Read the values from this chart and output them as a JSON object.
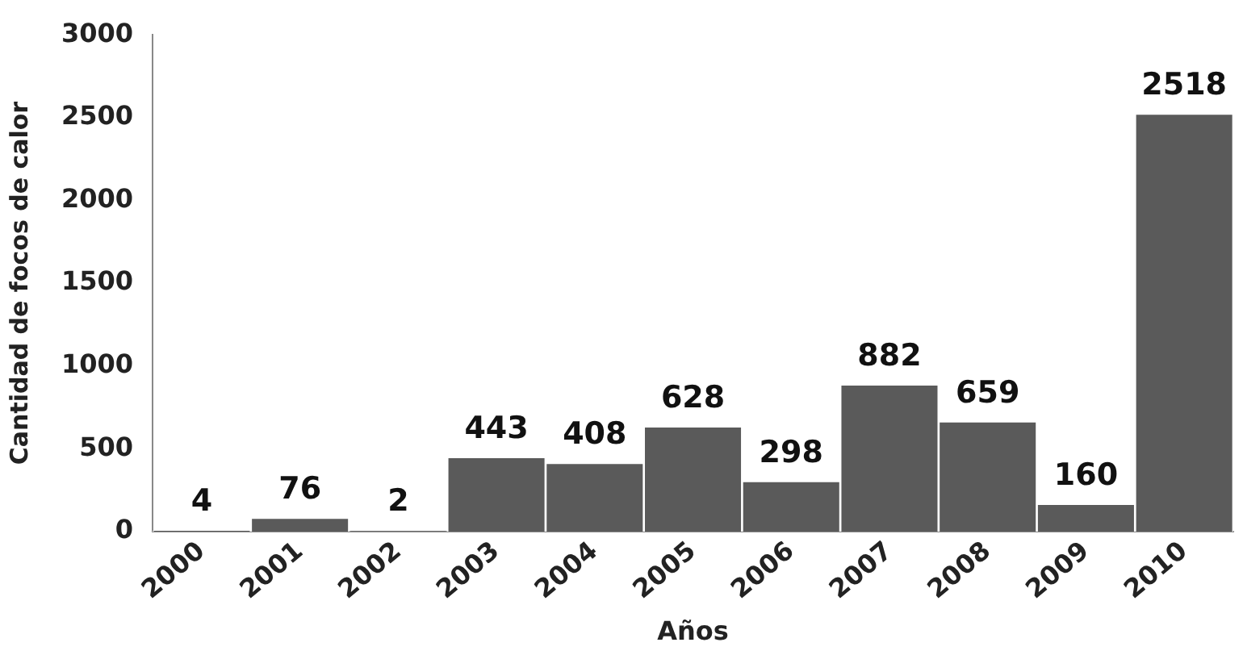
{
  "chart_data": {
    "type": "bar",
    "xlabel": "Años",
    "ylabel": "Cantidad de focos de calor",
    "categories": [
      "2000",
      "2001",
      "2002",
      "2003",
      "2004",
      "2005",
      "2006",
      "2007",
      "2008",
      "2009",
      "2010"
    ],
    "values": [
      4,
      76,
      2,
      443,
      408,
      628,
      298,
      882,
      659,
      160,
      2518
    ],
    "color": "#5a5a5a",
    "ylim": [
      0,
      3000
    ],
    "yticks": [
      0,
      500,
      1000,
      1500,
      2000,
      2500,
      3000
    ],
    "grid": false,
    "legend": false,
    "data_labels": true
  }
}
